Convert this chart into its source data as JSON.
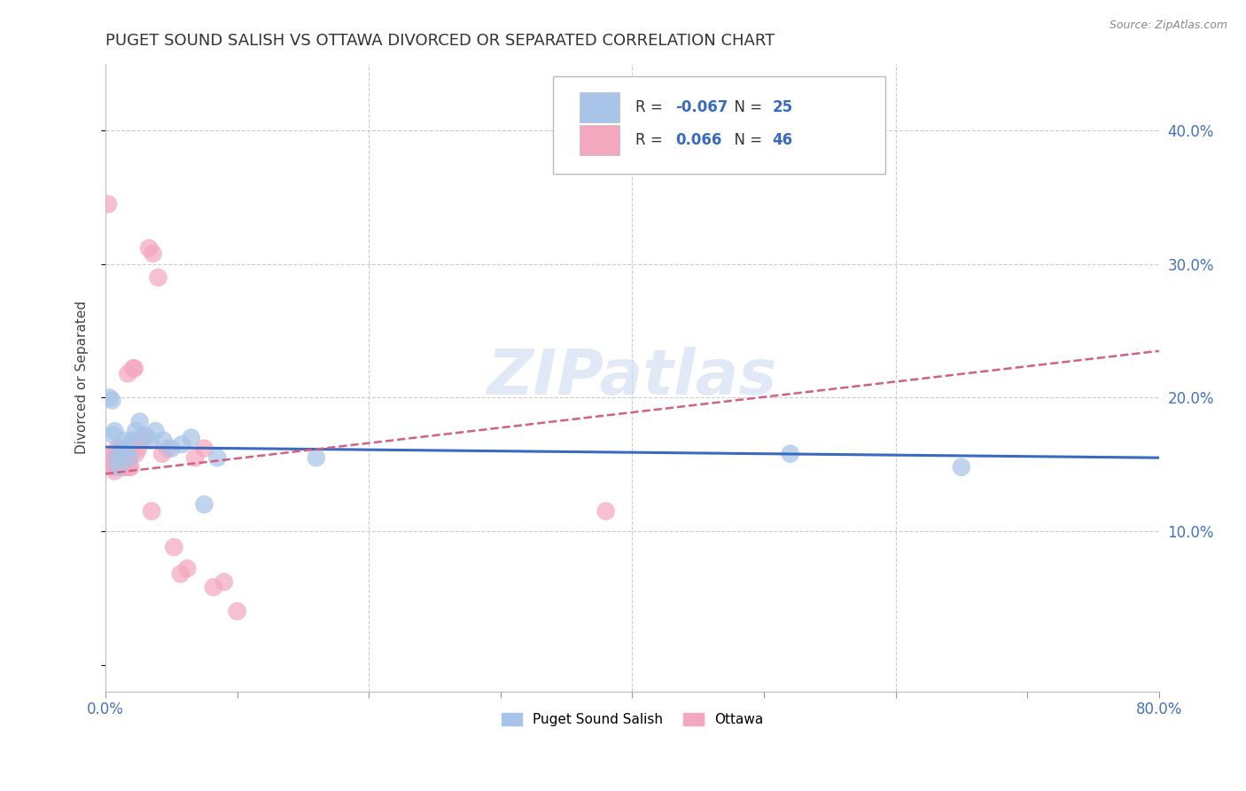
{
  "title": "PUGET SOUND SALISH VS OTTAWA DIVORCED OR SEPARATED CORRELATION CHART",
  "source": "Source: ZipAtlas.com",
  "ylabel": "Divorced or Separated",
  "xlim": [
    0,
    0.8
  ],
  "ylim": [
    -0.02,
    0.45
  ],
  "x_ticks": [
    0.0,
    0.1,
    0.2,
    0.3,
    0.4,
    0.5,
    0.6,
    0.7,
    0.8
  ],
  "x_tick_labels": [
    "0.0%",
    "",
    "",
    "",
    "",
    "",
    "",
    "",
    "80.0%"
  ],
  "y_ticks_right": [
    0.1,
    0.2,
    0.3,
    0.4
  ],
  "y_tick_labels_right": [
    "10.0%",
    "20.0%",
    "30.0%",
    "40.0%"
  ],
  "blue_label": "Puget Sound Salish",
  "pink_label": "Ottawa",
  "blue_R": -0.067,
  "blue_N": 25,
  "pink_R": 0.066,
  "pink_N": 46,
  "blue_color": "#a8c4e8",
  "pink_color": "#f4a8c0",
  "blue_line_color": "#3a6abf",
  "pink_line_color": "#d46080",
  "watermark": "ZIPatlas",
  "blue_scatter_x": [
    0.003,
    0.005,
    0.006,
    0.007,
    0.009,
    0.01,
    0.012,
    0.014,
    0.016,
    0.018,
    0.02,
    0.023,
    0.026,
    0.03,
    0.034,
    0.038,
    0.044,
    0.05,
    0.058,
    0.065,
    0.075,
    0.085,
    0.16,
    0.52,
    0.65
  ],
  "blue_scatter_y": [
    0.2,
    0.198,
    0.172,
    0.175,
    0.155,
    0.148,
    0.16,
    0.168,
    0.162,
    0.155,
    0.168,
    0.175,
    0.182,
    0.172,
    0.168,
    0.175,
    0.168,
    0.162,
    0.165,
    0.17,
    0.12,
    0.155,
    0.155,
    0.158,
    0.148
  ],
  "pink_scatter_x": [
    0.002,
    0.003,
    0.004,
    0.005,
    0.006,
    0.007,
    0.008,
    0.009,
    0.01,
    0.011,
    0.012,
    0.013,
    0.014,
    0.015,
    0.016,
    0.017,
    0.018,
    0.019,
    0.02,
    0.021,
    0.022,
    0.023,
    0.025,
    0.028,
    0.03,
    0.033,
    0.036,
    0.04,
    0.043,
    0.047,
    0.052,
    0.057,
    0.062,
    0.068,
    0.075,
    0.082,
    0.09,
    0.1,
    0.012,
    0.014,
    0.016,
    0.018,
    0.02,
    0.025,
    0.035,
    0.38
  ],
  "pink_scatter_y": [
    0.345,
    0.155,
    0.155,
    0.152,
    0.148,
    0.145,
    0.148,
    0.162,
    0.155,
    0.148,
    0.162,
    0.148,
    0.162,
    0.148,
    0.155,
    0.218,
    0.155,
    0.148,
    0.165,
    0.222,
    0.222,
    0.158,
    0.162,
    0.17,
    0.17,
    0.312,
    0.308,
    0.29,
    0.158,
    0.162,
    0.088,
    0.068,
    0.072,
    0.155,
    0.162,
    0.058,
    0.062,
    0.04,
    0.155,
    0.162,
    0.155,
    0.148,
    0.165,
    0.168,
    0.115,
    0.115
  ]
}
